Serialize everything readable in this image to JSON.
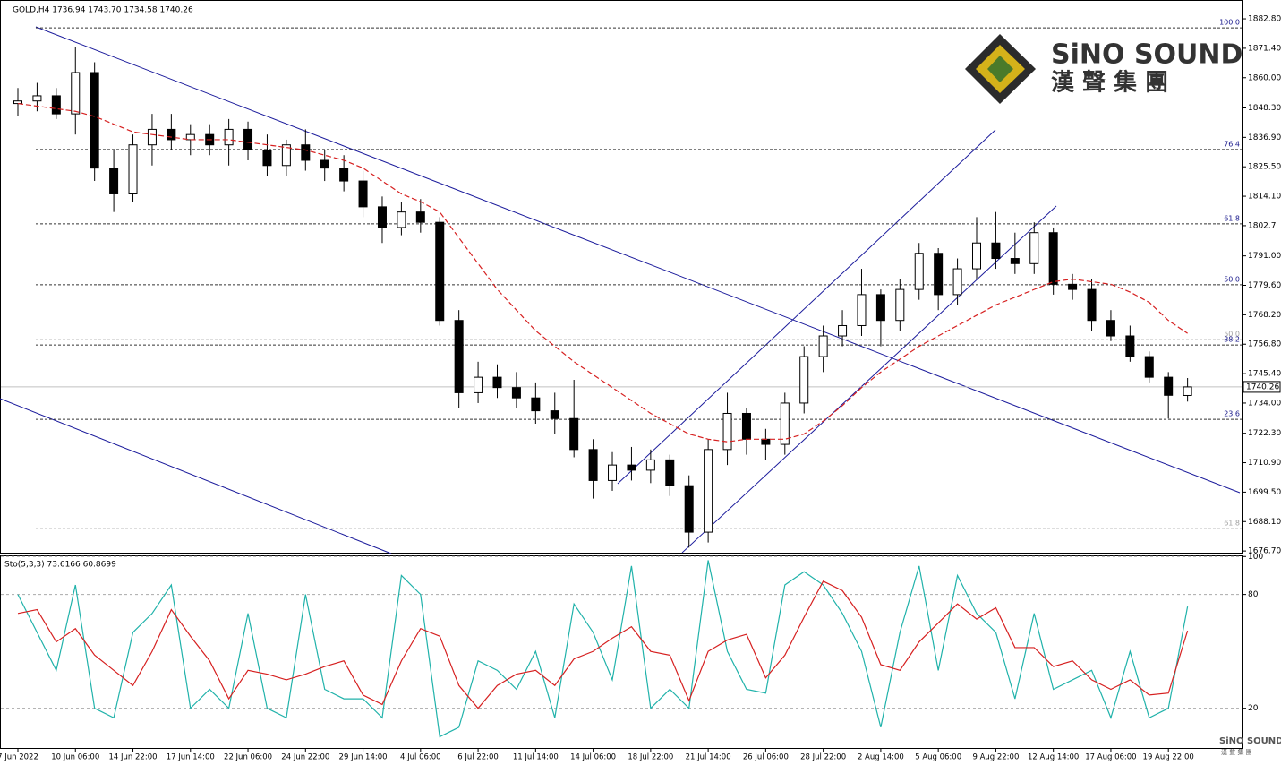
{
  "chart_data": [
    {
      "type": "candlestick",
      "title": "GOLD,H4 1736.94 1743.70 1734.58 1740.26",
      "categories": [
        "7 Jun 2022",
        null,
        null,
        "10 Jun 06:00",
        null,
        null,
        "14 Jun 22:00",
        null,
        null,
        "17 Jun 14:00",
        null,
        null,
        "22 Jun 06:00",
        null,
        null,
        "24 Jun 22:00",
        null,
        null,
        "29 Jun 14:00",
        null,
        null,
        "4 Jul 06:00",
        null,
        null,
        "6 Jul 22:00",
        null,
        null,
        "11 Jul 14:00",
        null,
        null,
        "14 Jul 06:00",
        null,
        null,
        "18 Jul 22:00",
        null,
        null,
        "21 Jul 14:00",
        null,
        null,
        "26 Jul 06:00",
        null,
        null,
        "28 Jul 22:00",
        null,
        null,
        "2 Aug 14:00",
        null,
        null,
        "5 Aug 06:00",
        null,
        null,
        "9 Aug 22:00",
        null,
        null,
        "12 Aug 14:00",
        null,
        null,
        "17 Aug 06:00",
        null,
        null,
        "19 Aug 22:00",
        null
      ],
      "open": [
        1850,
        1851,
        1853,
        1846,
        1862,
        1825,
        1815,
        1834,
        1840,
        1836,
        1838,
        1834,
        1840,
        1832,
        1826,
        1834,
        1828,
        1825,
        1820,
        1810,
        1802,
        1808,
        1804,
        1766,
        1738,
        1744,
        1740,
        1736,
        1731,
        1728,
        1716,
        1704,
        1710,
        1708,
        1712,
        1702,
        1684,
        1716,
        1730,
        1720,
        1718,
        1734,
        1752,
        1760,
        1764,
        1776,
        1766,
        1778,
        1792,
        1776,
        1786,
        1796,
        1790,
        1788,
        1800,
        1780,
        1778,
        1766,
        1760,
        1752,
        1744,
        1736.94
      ],
      "high": [
        1856,
        1858,
        1856,
        1872,
        1866,
        1832,
        1838,
        1846,
        1846,
        1842,
        1842,
        1844,
        1843,
        1838,
        1836,
        1840,
        1832,
        1830,
        1824,
        1814,
        1812,
        1813,
        1806,
        1770,
        1750,
        1749,
        1746,
        1742,
        1738,
        1743,
        1720,
        1715,
        1717,
        1716,
        1714,
        1706,
        1720,
        1738,
        1732,
        1724,
        1738,
        1756,
        1764,
        1770,
        1786,
        1778,
        1782,
        1796,
        1794,
        1790,
        1806,
        1808,
        1800,
        1804,
        1802,
        1784,
        1782,
        1770,
        1764,
        1754,
        1746,
        1743.7
      ],
      "low": [
        1845,
        1847,
        1844,
        1838,
        1820,
        1808,
        1812,
        1826,
        1832,
        1830,
        1830,
        1826,
        1828,
        1822,
        1822,
        1824,
        1820,
        1816,
        1806,
        1796,
        1799,
        1800,
        1764,
        1732,
        1734,
        1736,
        1732,
        1726,
        1722,
        1713,
        1697,
        1700,
        1704,
        1703,
        1698,
        1678,
        1680,
        1710,
        1714,
        1712,
        1714,
        1730,
        1746,
        1756,
        1760,
        1756,
        1762,
        1774,
        1770,
        1772,
        1782,
        1786,
        1784,
        1784,
        1776,
        1774,
        1762,
        1758,
        1750,
        1742,
        1728,
        1734.58
      ],
      "close": [
        1851,
        1853,
        1846,
        1862,
        1825,
        1815,
        1834,
        1840,
        1836,
        1838,
        1834,
        1840,
        1832,
        1826,
        1834,
        1828,
        1825,
        1820,
        1810,
        1802,
        1808,
        1804,
        1766,
        1738,
        1744,
        1740,
        1736,
        1731,
        1728,
        1716,
        1704,
        1710,
        1708,
        1712,
        1702,
        1684,
        1716,
        1730,
        1720,
        1718,
        1734,
        1752,
        1760,
        1764,
        1776,
        1766,
        1778,
        1792,
        1776,
        1786,
        1796,
        1790,
        1788,
        1800,
        1780,
        1778,
        1766,
        1760,
        1752,
        1744,
        1737,
        1740.26
      ],
      "color": "#000000",
      "ma": {
        "color": "#d62020",
        "values": [
          1850,
          1849,
          1848,
          1847,
          1845,
          1842,
          1839,
          1838,
          1837,
          1836,
          1836,
          1836,
          1835,
          1834,
          1833,
          1832,
          1830,
          1828,
          1825,
          1820,
          1815,
          1812,
          1808,
          1798,
          1788,
          1778,
          1770,
          1762,
          1756,
          1750,
          1745,
          1740,
          1735,
          1730,
          1726,
          1722,
          1720,
          1719,
          1720,
          1720,
          1720,
          1722,
          1727,
          1733,
          1740,
          1746,
          1751,
          1756,
          1760,
          1764,
          1768,
          1772,
          1775,
          1778,
          1781,
          1782,
          1781,
          1780,
          1777,
          1773,
          1766,
          1761
        ]
      },
      "levels": [
        {
          "label": "100.0",
          "price": 1879.3,
          "color": "#1a1a8c"
        },
        {
          "label": "76.4",
          "price": 1832.2,
          "color": "#1a1a8c"
        },
        {
          "label": "61.8",
          "price": 1803.4,
          "color": "#1a1a8c"
        },
        {
          "label": "50.0",
          "price": 1779.8,
          "color": "#1a1a8c"
        },
        {
          "label": "50.0",
          "price": 1758.6,
          "color": "#a0a0a0"
        },
        {
          "label": "38.2",
          "price": 1756.5,
          "color": "#1a1a8c"
        },
        {
          "label": "23.6",
          "price": 1727.7,
          "color": "#1a1a8c"
        },
        {
          "label": "61.8",
          "price": 1685.4,
          "color": "#a0a0a0"
        }
      ],
      "last_price": 1740.26,
      "ylim": [
        1675.7,
        1890.1
      ],
      "yticks": [
        {
          "value": 1882.8,
          "label": "1882.80"
        },
        {
          "value": 1871.4,
          "label": "1871.40"
        },
        {
          "value": 1860.0,
          "label": "1860.00"
        },
        {
          "value": 1848.3,
          "label": "1848.30"
        },
        {
          "value": 1836.9,
          "label": "1836.90"
        },
        {
          "value": 1825.5,
          "label": "1825.50"
        },
        {
          "value": 1814.1,
          "label": "1814.10"
        },
        1802.7,
        {
          "value": 1791.0,
          "label": "1791.00"
        },
        {
          "value": 1779.6,
          "label": "1779.60"
        },
        {
          "value": 1768.2,
          "label": "1768.20"
        },
        {
          "value": 1756.8,
          "label": "1756.80"
        },
        {
          "value": 1745.4,
          "label": "1745.40"
        },
        {
          "value": 1734.0,
          "label": "1734.00"
        },
        {
          "value": 1722.3,
          "label": "1722.30"
        },
        {
          "value": 1710.9,
          "label": "1710.90"
        },
        {
          "value": 1699.5,
          "label": "1699.50"
        },
        {
          "value": 1688.1,
          "label": "1688.10"
        },
        {
          "value": 1676.7,
          "label": "1676.70"
        }
      ]
    },
    {
      "type": "line",
      "title": "Sto(5,3,3) 73.6166 60.8699",
      "series": [
        {
          "color": "#20b2aa",
          "values": [
            80,
            60,
            40,
            85,
            20,
            15,
            60,
            70,
            85,
            20,
            30,
            20,
            70,
            20,
            15,
            80,
            30,
            25,
            25,
            15,
            90,
            80,
            5,
            10,
            45,
            40,
            30,
            50,
            15,
            75,
            60,
            35,
            95,
            20,
            30,
            20,
            98,
            50,
            30,
            28,
            85,
            92,
            85,
            70,
            50,
            10,
            60,
            95,
            40,
            90,
            70,
            60,
            25,
            70,
            30,
            35,
            40,
            15,
            50,
            15,
            20,
            73.6166
          ]
        },
        {
          "color": "#d62020",
          "values": [
            70,
            72,
            55,
            62,
            48,
            40,
            32,
            50,
            72,
            58,
            45,
            25,
            40,
            38,
            35,
            38,
            42,
            45,
            27,
            22,
            45,
            62,
            58,
            32,
            20,
            32,
            38,
            40,
            32,
            46,
            50,
            57,
            63,
            50,
            48,
            24,
            50,
            56,
            59,
            36,
            48,
            68,
            87,
            82,
            68,
            43,
            40,
            55,
            65,
            75,
            67,
            73,
            52,
            52,
            42,
            45,
            35,
            30,
            35,
            27,
            28,
            60.8699
          ]
        }
      ],
      "ylim": [
        -1.4,
        100.6
      ],
      "yticks": [
        100,
        80,
        20
      ]
    }
  ],
  "logo": {
    "en": "SiNO SOUND",
    "zh": "漢 聲 集 團"
  }
}
